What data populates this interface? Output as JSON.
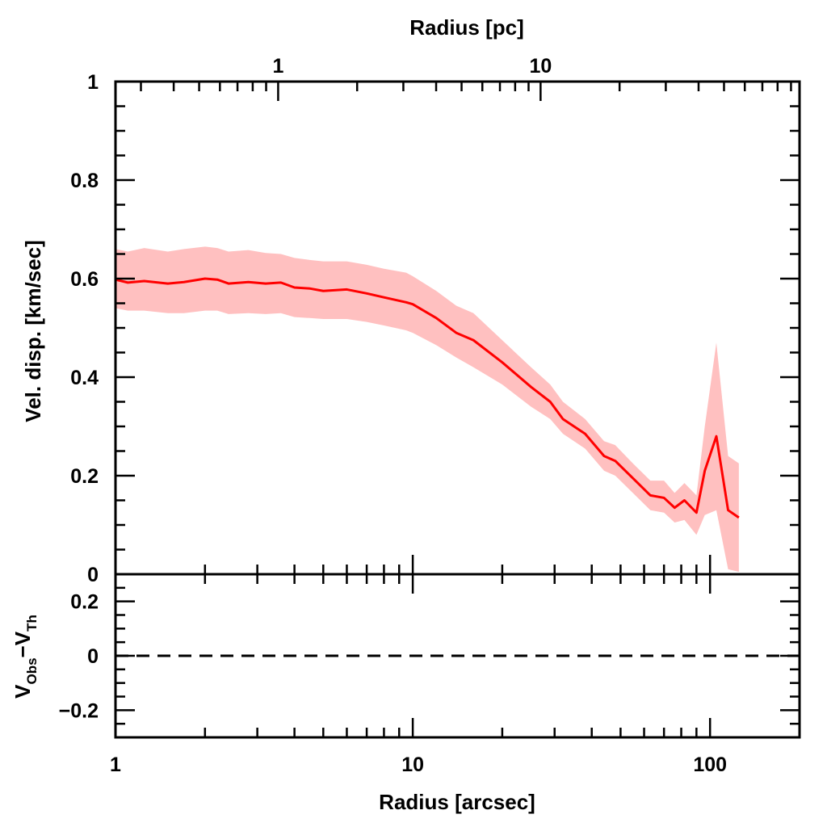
{
  "chart_data": {
    "type": "line",
    "panels": [
      {
        "name": "upper",
        "xlabel": "Radius [arcsec]",
        "ylabel": "Vel. disp. [km/sec]",
        "top_xlabel": "Radius [pc]",
        "xscale": "log",
        "xlim": [
          1,
          200
        ],
        "top_xlim": [
          0.24,
          97
        ],
        "ylim": [
          0,
          1
        ],
        "yticks": [
          0,
          0.2,
          0.4,
          0.6,
          0.8,
          1
        ],
        "ytick_labels": [
          "0",
          "0.2",
          "0.4",
          "0.6",
          "0.8",
          "1"
        ],
        "top_xticks": [
          1,
          10
        ],
        "top_xtick_labels": [
          "1",
          "10"
        ],
        "series": [
          {
            "name": "velocity dispersion",
            "color": "#ff0000",
            "band_color": "#ffc0c0",
            "x": [
              1.0,
              1.1,
              1.25,
              1.5,
              1.7,
              2.0,
              2.2,
              2.4,
              2.8,
              3.2,
              3.6,
              4.0,
              4.5,
              5.0,
              6.0,
              7.0,
              8.0,
              9.5,
              10,
              12,
              14,
              16,
              20,
              25,
              29,
              32,
              38,
              44,
              48,
              55,
              63,
              70,
              76,
              82,
              90,
              96,
              105,
              115,
              125
            ],
            "y": [
              0.598,
              0.592,
              0.595,
              0.59,
              0.593,
              0.6,
              0.598,
              0.59,
              0.593,
              0.59,
              0.592,
              0.582,
              0.58,
              0.575,
              0.578,
              0.57,
              0.562,
              0.552,
              0.548,
              0.52,
              0.49,
              0.475,
              0.43,
              0.38,
              0.35,
              0.315,
              0.285,
              0.24,
              0.23,
              0.195,
              0.16,
              0.155,
              0.135,
              0.15,
              0.125,
              0.21,
              0.28,
              0.13,
              0.115
            ],
            "upper": [
              0.66,
              0.655,
              0.662,
              0.655,
              0.66,
              0.665,
              0.662,
              0.655,
              0.658,
              0.652,
              0.65,
              0.642,
              0.638,
              0.635,
              0.635,
              0.628,
              0.62,
              0.612,
              0.605,
              0.575,
              0.545,
              0.53,
              0.475,
              0.42,
              0.385,
              0.35,
              0.315,
              0.27,
              0.262,
              0.225,
              0.19,
              0.19,
              0.165,
              0.185,
              0.16,
              0.3,
              0.47,
              0.24,
              0.225
            ],
            "lower": [
              0.54,
              0.535,
              0.535,
              0.53,
              0.53,
              0.535,
              0.535,
              0.528,
              0.53,
              0.528,
              0.53,
              0.522,
              0.52,
              0.518,
              0.518,
              0.512,
              0.505,
              0.495,
              0.49,
              0.465,
              0.44,
              0.42,
              0.385,
              0.34,
              0.315,
              0.285,
              0.255,
              0.21,
              0.2,
              0.165,
              0.13,
              0.125,
              0.105,
              0.11,
              0.08,
              0.12,
              0.13,
              0.01,
              0.005
            ]
          }
        ]
      },
      {
        "name": "lower",
        "ylabel_main": "V",
        "ylabel_sub1": "Obs",
        "ylabel_mid": "−V",
        "ylabel_sub2": "Th",
        "xscale": "log",
        "xlim": [
          1,
          200
        ],
        "ylim": [
          -0.3,
          0.3
        ],
        "yticks": [
          -0.2,
          0,
          0.2
        ],
        "ytick_labels": [
          "−0.2",
          "0",
          "0.2"
        ],
        "xticks": [
          1,
          10,
          100
        ],
        "xtick_labels": [
          "1",
          "10",
          "100"
        ],
        "reference_line": {
          "y": 0,
          "style": "dashed"
        }
      }
    ]
  }
}
